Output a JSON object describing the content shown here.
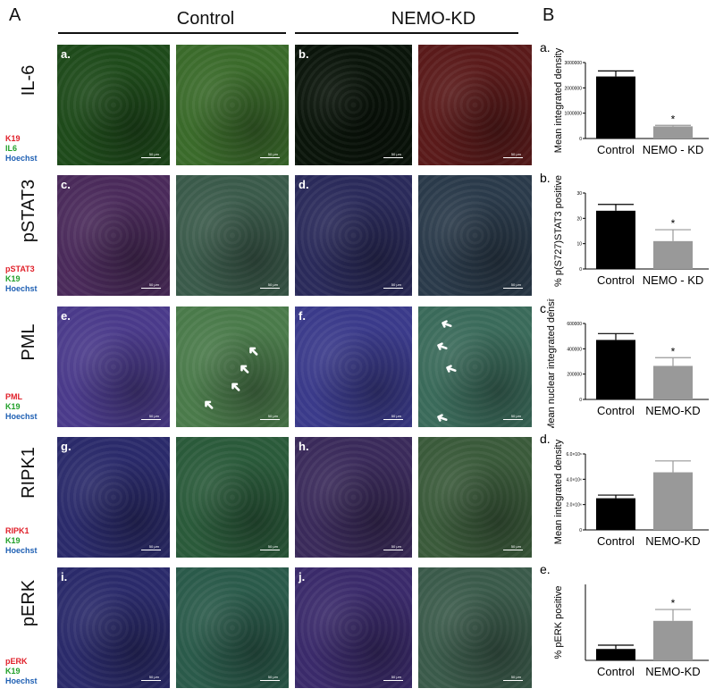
{
  "labels": {
    "panel_A": "A",
    "panel_B": "B",
    "control": "Control",
    "nemo_kd": "NEMO-KD"
  },
  "rows": [
    {
      "label": "IL-6",
      "legend": [
        "K19",
        "IL6",
        "Hoechst"
      ],
      "labels": [
        "a.",
        "b."
      ],
      "colors": [
        "#1e4a1a",
        "#3a6a2a",
        "#0a140a",
        "#5a1a1a"
      ]
    },
    {
      "label": "pSTAT3",
      "legend": [
        "pSTAT3",
        "K19",
        "Hoechst"
      ],
      "labels": [
        "c.",
        "d."
      ],
      "colors": [
        "#4a2a5a",
        "#3a5a4a",
        "#2a2a5a",
        "#2a3a4a"
      ]
    },
    {
      "label": "PML",
      "legend": [
        "PML",
        "K19",
        "Hoechst"
      ],
      "labels": [
        "e.",
        "f."
      ],
      "colors": [
        "#4a3a8a",
        "#4a7a4a",
        "#3a3a8a",
        "#3a6a5a"
      ]
    },
    {
      "label": "RIPK1",
      "legend": [
        "RIPK1",
        "K19",
        "Hoechst"
      ],
      "labels": [
        "g.",
        "h."
      ],
      "colors": [
        "#2a2a6a",
        "#2a5a3a",
        "#3a2a5a",
        "#3a5a3a"
      ]
    },
    {
      "label": "pERK",
      "legend": [
        "pERK",
        "K19",
        "Hoechst"
      ],
      "labels": [
        "i.",
        "j."
      ],
      "colors": [
        "#2a2a6a",
        "#2a5a4a",
        "#3a2a6a",
        "#3a5a4a"
      ]
    }
  ],
  "scale_text": "50 μm",
  "chart_data": [
    {
      "type": "bar",
      "panel": "a.",
      "ylabel": "Mean integrated density",
      "categories": [
        "Control",
        "NEMO - KD"
      ],
      "values": [
        2450000,
        480000
      ],
      "errors": [
        220000,
        40000
      ],
      "ylim": [
        0,
        3000000
      ],
      "yticks": [
        "0",
        "1000000",
        "2000000",
        "3000000"
      ],
      "significance": [
        null,
        "*"
      ],
      "colors": [
        "#000000",
        "#999999"
      ]
    },
    {
      "type": "bar",
      "panel": "b.",
      "ylabel": "% p(S727)STAT3 positive",
      "categories": [
        "Control",
        "NEMO - KD"
      ],
      "values": [
        23,
        11
      ],
      "errors": [
        2.5,
        4.5
      ],
      "ylim": [
        0,
        30
      ],
      "yticks": [
        "0",
        "10",
        "20",
        "30"
      ],
      "significance": [
        null,
        "*"
      ],
      "colors": [
        "#000000",
        "#999999"
      ]
    },
    {
      "type": "bar",
      "panel": "c.",
      "ylabel": "Mean nuclear integrated density",
      "categories": [
        "Control",
        "NEMO-KD"
      ],
      "values": [
        470000,
        265000
      ],
      "errors": [
        50000,
        65000
      ],
      "ylim": [
        0,
        600000
      ],
      "yticks": [
        "0",
        "200000",
        "400000",
        "600000"
      ],
      "significance": [
        null,
        "*"
      ],
      "colors": [
        "#000000",
        "#999999"
      ]
    },
    {
      "type": "bar",
      "panel": "d.",
      "ylabel": "Mean integrated density",
      "categories": [
        "Control",
        "NEMO-KD"
      ],
      "values": [
        2500000,
        4550000
      ],
      "errors": [
        250000,
        900000
      ],
      "ylim": [
        0,
        6000000
      ],
      "yticks": [
        "0",
        "2.0×10⁶",
        "4.0×10⁶",
        "6.0×10⁶"
      ],
      "significance": [
        null,
        null
      ],
      "colors": [
        "#000000",
        "#999999"
      ]
    },
    {
      "type": "bar",
      "panel": "e.",
      "ylabel": "% pERK positive",
      "categories": [
        "Control",
        "NEMO-KD"
      ],
      "values": [
        1.5,
        5.2
      ],
      "errors": [
        0.5,
        1.5
      ],
      "ylim": [
        0,
        10
      ],
      "yticks": [],
      "significance": [
        null,
        "*"
      ],
      "colors": [
        "#000000",
        "#999999"
      ]
    }
  ]
}
